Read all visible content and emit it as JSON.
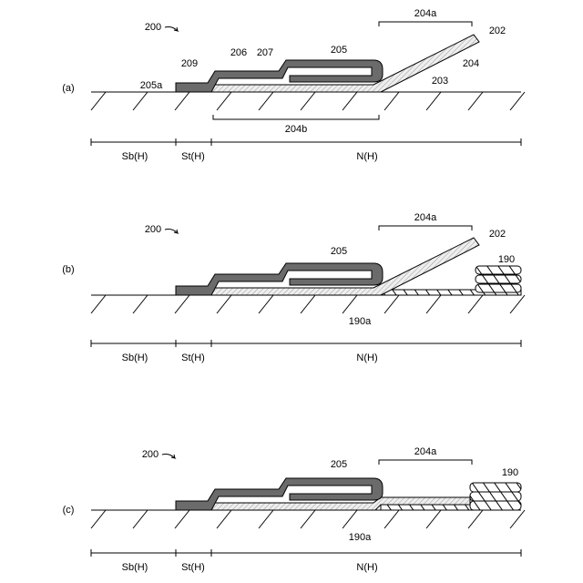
{
  "panels": [
    {
      "label": "(a)",
      "callouts": [
        "200",
        "209",
        "206",
        "207",
        "205",
        "204a",
        "202",
        "204",
        "203",
        "205a",
        "204b"
      ],
      "zones": [
        "Sb(H)",
        "St(H)",
        "N(H)"
      ]
    },
    {
      "label": "(b)",
      "callouts": [
        "200",
        "204a",
        "202",
        "205",
        "190",
        "190a"
      ],
      "zones": [
        "Sb(H)",
        "St(H)",
        "N(H)"
      ]
    },
    {
      "label": "(c)",
      "callouts": [
        "200",
        "205",
        "204a",
        "190",
        "190a"
      ],
      "zones": [
        "Sb(H)",
        "St(H)",
        "N(H)"
      ]
    }
  ]
}
